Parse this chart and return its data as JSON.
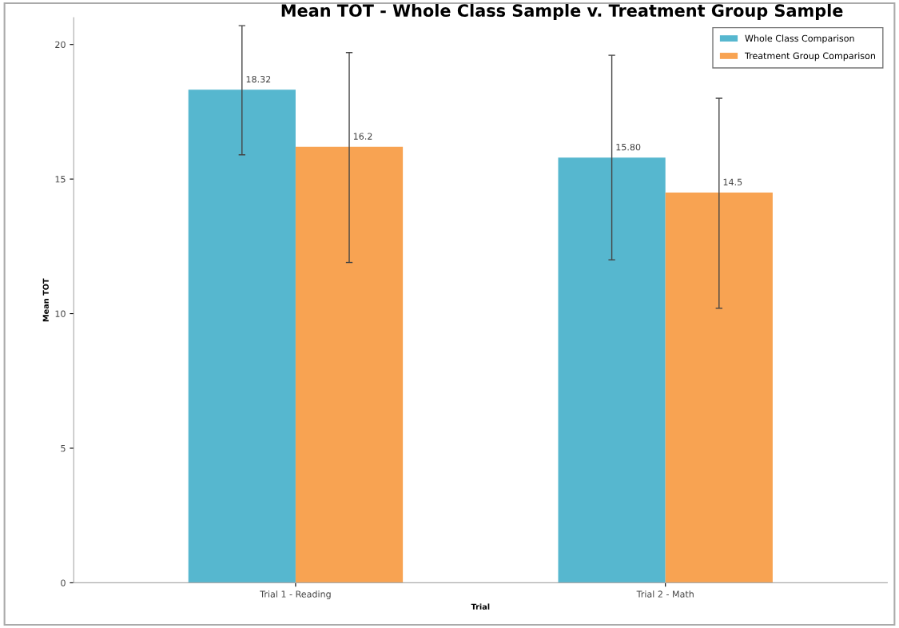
{
  "chart_data": {
    "type": "bar",
    "title": "Mean TOT - Whole Class Sample v. Treatment Group Sample",
    "xlabel": "Trial",
    "ylabel": "Mean TOT",
    "categories": [
      "Trial 1 - Reading",
      "Trial 2 - Math"
    ],
    "series": [
      {
        "name": "Whole Class Comparison",
        "color": "#56b7cf",
        "values": [
          18.32,
          15.8
        ],
        "value_labels": [
          "18.32",
          "15.80"
        ],
        "errors": [
          [
            15.9,
            20.7
          ],
          [
            12.0,
            19.6
          ]
        ]
      },
      {
        "name": "Treatment Group Comparison",
        "color": "#f8a352",
        "values": [
          16.2,
          14.5
        ],
        "value_labels": [
          "16.2",
          "14.5"
        ],
        "errors": [
          [
            11.9,
            19.7
          ],
          [
            10.2,
            18.0
          ]
        ]
      }
    ],
    "ylim": [
      0,
      21
    ],
    "yticks": [
      0,
      5,
      10,
      15,
      20
    ],
    "legend": "top right",
    "grid": false
  }
}
